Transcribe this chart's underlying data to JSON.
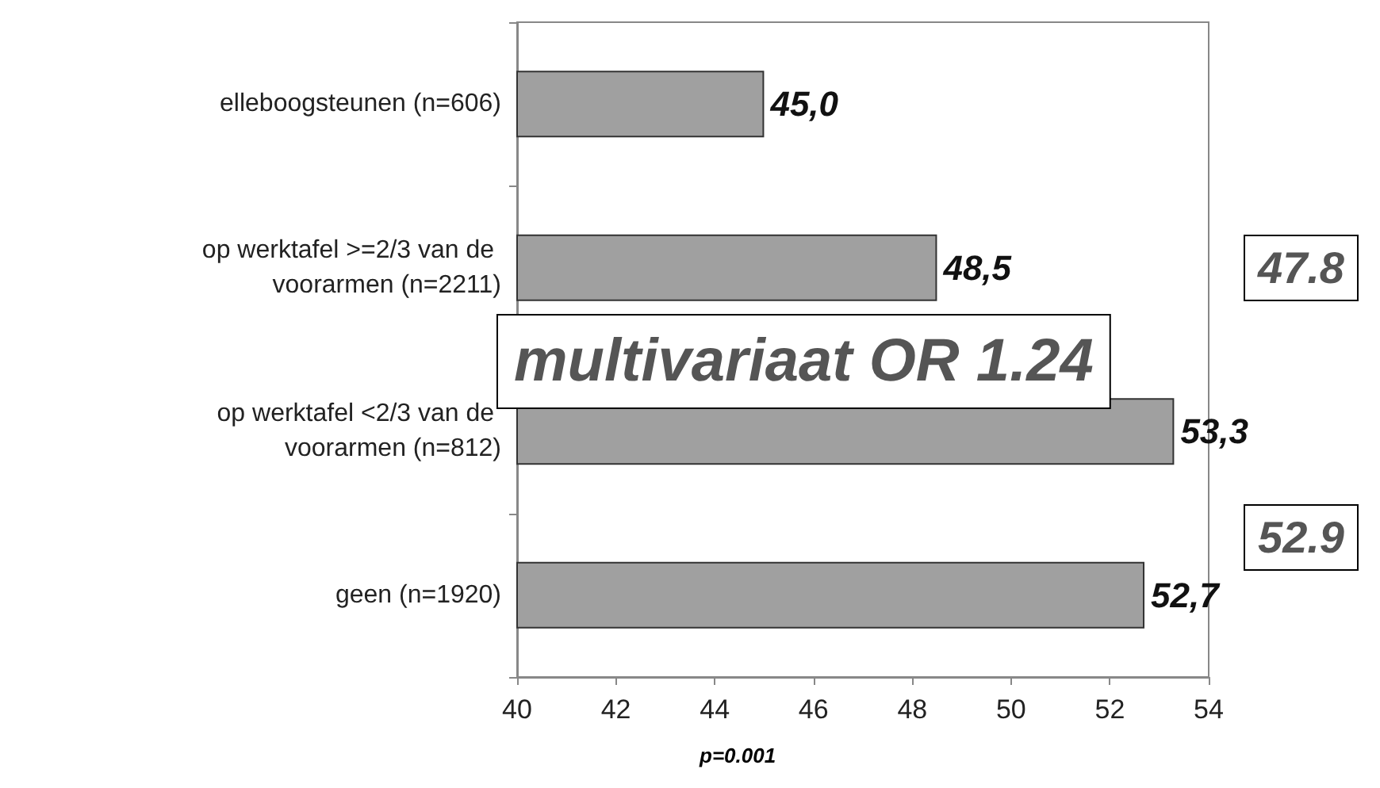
{
  "chart_data": {
    "type": "bar",
    "orientation": "horizontal",
    "categories": [
      "elleboogsteunen (n=606)",
      "op werktafel >=2/3 van de voorarmen (n=2211)",
      "op werktafel <2/3 van de voorarmen (n=812)",
      "geen (n=1920)"
    ],
    "values": [
      45.0,
      48.5,
      53.3,
      52.7
    ],
    "value_labels": [
      "45,0",
      "48,5",
      "53,3",
      "52,7"
    ],
    "color": "#a0a0a0",
    "xlim": [
      40,
      54
    ],
    "xticks": [
      40,
      42,
      44,
      46,
      48,
      50,
      52,
      54
    ],
    "grid": false,
    "annotations": [
      "47.8",
      "multivariaat OR 1.24",
      "52.9",
      "p=0.001"
    ]
  }
}
